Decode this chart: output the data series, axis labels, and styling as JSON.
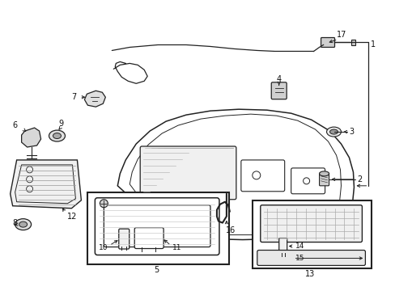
{
  "background_color": "#ffffff",
  "fig_width": 4.89,
  "fig_height": 3.6,
  "dpi": 100,
  "line_color": "#222222",
  "label_color": "#111111",
  "fs": 7.0
}
